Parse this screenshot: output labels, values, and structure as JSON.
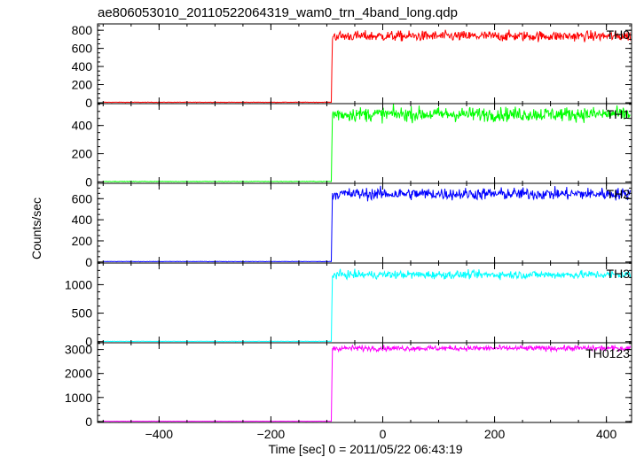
{
  "chart_data": {
    "type": "line",
    "title": "ae806053010_20110522064319_wam0_trn_4band_long.qdp",
    "xlabel": "Time [sec] 0 = 2011/05/22 06:43:19",
    "ylabel": "Counts/sec",
    "xlim": [
      -510,
      445
    ],
    "x_ticks": [
      -400,
      -200,
      0,
      200,
      400
    ],
    "x_tick_labels": [
      "−400",
      "−200",
      "0",
      "200",
      "400"
    ],
    "grid": false,
    "step_time": -91,
    "panels": [
      {
        "name": "TH0",
        "color": "#ff0000",
        "ylim": [
          -10,
          870
        ],
        "y_ticks": [
          0,
          200,
          400,
          600,
          800
        ],
        "y_tick_labels": [
          "0",
          "200",
          "400",
          "600",
          "800"
        ],
        "pre_level": 5,
        "post_level": 735,
        "noise": 28
      },
      {
        "name": "TH1",
        "color": "#00ff00",
        "ylim": [
          -10,
          555
        ],
        "y_ticks": [
          0,
          200,
          400
        ],
        "y_tick_labels": [
          "0",
          "200",
          "400"
        ],
        "pre_level": 3,
        "post_level": 480,
        "noise": 25
      },
      {
        "name": "TH2",
        "color": "#0000ff",
        "ylim": [
          -10,
          745
        ],
        "y_ticks": [
          0,
          200,
          400,
          600
        ],
        "y_tick_labels": [
          "0",
          "200",
          "400",
          "600"
        ],
        "pre_level": 4,
        "post_level": 645,
        "noise": 28
      },
      {
        "name": "TH3",
        "color": "#00ffff",
        "ylim": [
          -20,
          1380
        ],
        "y_ticks": [
          0,
          500,
          1000
        ],
        "y_tick_labels": [
          "0",
          "500",
          "1000"
        ],
        "pre_level": 5,
        "post_level": 1175,
        "noise": 35
      },
      {
        "name": "TH0123",
        "color": "#ff00ff",
        "ylim": [
          -40,
          3280
        ],
        "y_ticks": [
          0,
          1000,
          2000,
          3000
        ],
        "y_tick_labels": [
          "0",
          "1000",
          "2000",
          "3000"
        ],
        "pre_level": 12,
        "post_level": 3050,
        "noise": 55
      }
    ]
  }
}
